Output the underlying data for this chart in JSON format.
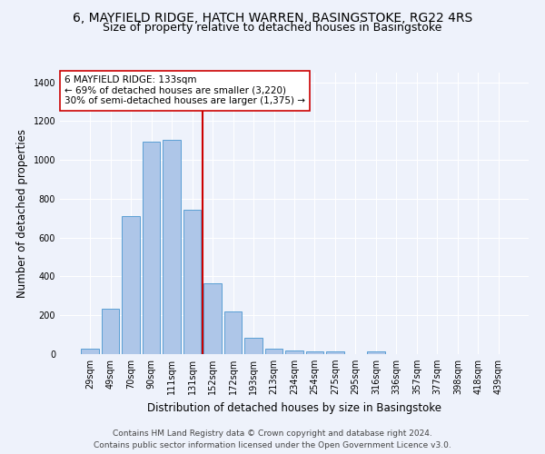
{
  "title_line1": "6, MAYFIELD RIDGE, HATCH WARREN, BASINGSTOKE, RG22 4RS",
  "title_line2": "Size of property relative to detached houses in Basingstoke",
  "xlabel": "Distribution of detached houses by size in Basingstoke",
  "ylabel": "Number of detached properties",
  "bar_labels": [
    "29sqm",
    "49sqm",
    "70sqm",
    "90sqm",
    "111sqm",
    "131sqm",
    "152sqm",
    "172sqm",
    "193sqm",
    "213sqm",
    "234sqm",
    "254sqm",
    "275sqm",
    "295sqm",
    "316sqm",
    "336sqm",
    "357sqm",
    "377sqm",
    "398sqm",
    "418sqm",
    "439sqm"
  ],
  "bar_heights": [
    30,
    235,
    710,
    1095,
    1105,
    745,
    365,
    220,
    85,
    30,
    20,
    15,
    15,
    0,
    12,
    0,
    0,
    0,
    0,
    0,
    0
  ],
  "bar_color": "#aec6e8",
  "bar_edge_color": "#5a9fd4",
  "vline_x": 5.5,
  "vline_color": "#cc0000",
  "annotation_text": "6 MAYFIELD RIDGE: 133sqm\n← 69% of detached houses are smaller (3,220)\n30% of semi-detached houses are larger (1,375) →",
  "annotation_box_color": "#ffffff",
  "annotation_box_edge": "#cc0000",
  "ylim": [
    0,
    1450
  ],
  "yticks": [
    0,
    200,
    400,
    600,
    800,
    1000,
    1200,
    1400
  ],
  "footer_line1": "Contains HM Land Registry data © Crown copyright and database right 2024.",
  "footer_line2": "Contains public sector information licensed under the Open Government Licence v3.0.",
  "background_color": "#eef2fb",
  "grid_color": "#ffffff",
  "title_fontsize": 10,
  "subtitle_fontsize": 9,
  "axis_label_fontsize": 8.5,
  "tick_fontsize": 7,
  "annotation_fontsize": 7.5,
  "footer_fontsize": 6.5
}
